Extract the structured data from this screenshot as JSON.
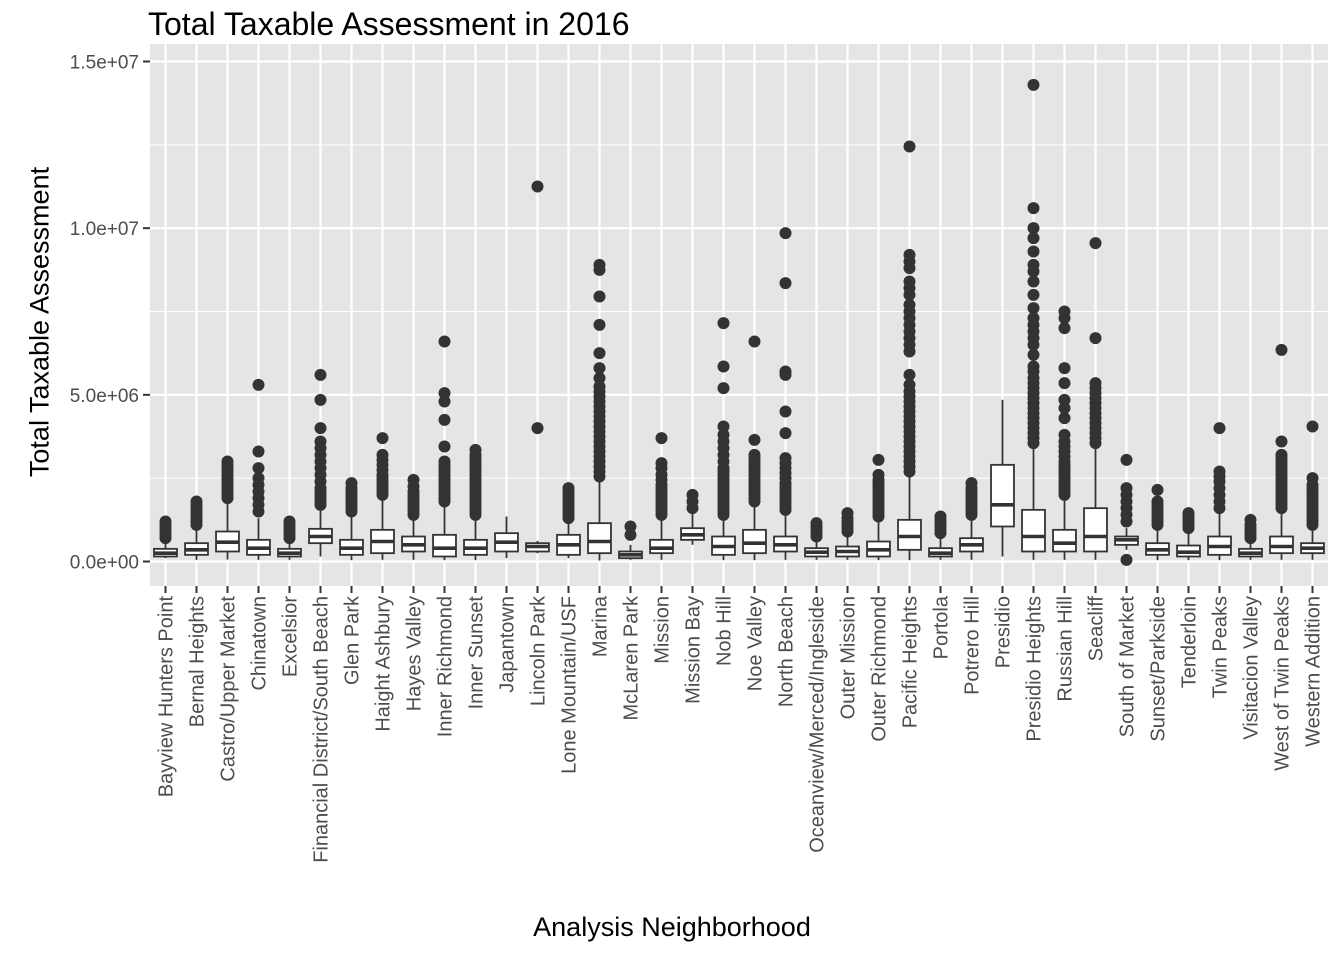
{
  "chart_data": {
    "type": "box",
    "title": "Total Taxable Assessment in 2016",
    "xlabel": "Analysis Neighborhood",
    "ylabel": "Total Taxable Assessment",
    "ylim": [
      -700000,
      15000000
    ],
    "yticks": [
      0,
      5000000,
      10000000,
      15000000
    ],
    "ytick_labels": [
      "0.0e+00",
      "5.0e+06",
      "1.0e+07",
      "1.5e+07"
    ],
    "grid": true,
    "theme": {
      "panel_bg": "#e5e5e5",
      "grid_color": "#ffffff",
      "box_fill": "#ffffff",
      "box_line": "#333333",
      "point_color": "#333333"
    },
    "categories": [
      "Bayview Hunters Point",
      "Bernal Heights",
      "Castro/Upper Market",
      "Chinatown",
      "Excelsior",
      "Financial District/South Beach",
      "Glen Park",
      "Haight Ashbury",
      "Hayes Valley",
      "Inner Richmond",
      "Inner Sunset",
      "Japantown",
      "Lincoln Park",
      "Lone Mountain/USF",
      "Marina",
      "McLaren Park",
      "Mission",
      "Mission Bay",
      "Nob Hill",
      "Noe Valley",
      "North Beach",
      "Oceanview/Merced/Ingleside",
      "Outer Mission",
      "Outer Richmond",
      "Pacific Heights",
      "Portola",
      "Potrero Hill",
      "Presidio",
      "Presidio Heights",
      "Russian Hill",
      "Seacliff",
      "South of Market",
      "Sunset/Parkside",
      "Tenderloin",
      "Twin Peaks",
      "Visitacion Valley",
      "West of Twin Peaks",
      "Western Addition"
    ],
    "boxes": [
      {
        "low": 100000,
        "q1": 150000,
        "median": 250000,
        "q3": 380000,
        "high": 650000,
        "outliers": [
          700000,
          800000,
          900000,
          1000000,
          1100000,
          1200000
        ]
      },
      {
        "low": 50000,
        "q1": 200000,
        "median": 350000,
        "q3": 550000,
        "high": 1000000,
        "outliers": [
          1100000,
          1200000,
          1300000,
          1400000,
          1500000,
          1600000,
          1700000,
          1800000
        ]
      },
      {
        "low": 60000,
        "q1": 300000,
        "median": 580000,
        "q3": 900000,
        "high": 1800000,
        "outliers": [
          1900000,
          2000000,
          2100000,
          2200000,
          2300000,
          2400000,
          2500000,
          2600000,
          2700000,
          2800000,
          2900000,
          3000000
        ]
      },
      {
        "low": 50000,
        "q1": 200000,
        "median": 400000,
        "q3": 650000,
        "high": 1300000,
        "outliers": [
          1500000,
          1700000,
          1900000,
          2100000,
          2300000,
          2500000,
          2800000,
          3300000,
          5300000
        ]
      },
      {
        "low": 50000,
        "q1": 150000,
        "median": 250000,
        "q3": 380000,
        "high": 650000,
        "outliers": [
          700000,
          800000,
          900000,
          1000000,
          1100000,
          1200000
        ]
      },
      {
        "low": 150000,
        "q1": 550000,
        "median": 750000,
        "q3": 980000,
        "high": 1600000,
        "outliers": [
          1700000,
          1800000,
          1900000,
          2000000,
          2100000,
          2200000,
          2400000,
          2600000,
          2800000,
          3000000,
          3200000,
          3400000,
          3600000,
          4000000,
          4850000,
          5600000
        ]
      },
      {
        "low": 40000,
        "q1": 200000,
        "median": 400000,
        "q3": 650000,
        "high": 1400000,
        "outliers": [
          1500000,
          1600000,
          1700000,
          1800000,
          1900000,
          2000000,
          2100000,
          2200000,
          2350000
        ]
      },
      {
        "low": 50000,
        "q1": 250000,
        "median": 600000,
        "q3": 950000,
        "high": 1900000,
        "outliers": [
          2000000,
          2100000,
          2200000,
          2300000,
          2400000,
          2500000,
          2600000,
          2750000,
          2900000,
          3050000,
          3200000,
          3700000
        ]
      },
      {
        "low": 50000,
        "q1": 300000,
        "median": 500000,
        "q3": 750000,
        "high": 1300000,
        "outliers": [
          1400000,
          1500000,
          1600000,
          1700000,
          1800000,
          1900000,
          2000000,
          2100000,
          2250000,
          2450000
        ]
      },
      {
        "low": 40000,
        "q1": 150000,
        "median": 400000,
        "q3": 800000,
        "high": 1700000,
        "outliers": [
          1800000,
          1900000,
          2000000,
          2100000,
          2200000,
          2300000,
          2400000,
          2500000,
          2600000,
          2700000,
          2800000,
          2900000,
          3000000,
          3450000,
          4250000,
          4800000,
          5050000,
          6600000
        ]
      },
      {
        "low": 40000,
        "q1": 200000,
        "median": 400000,
        "q3": 650000,
        "high": 1300000,
        "outliers": [
          1400000,
          1500000,
          1600000,
          1700000,
          1800000,
          1900000,
          2000000,
          2100000,
          2200000,
          2300000,
          2400000,
          2500000,
          2600000,
          2700000,
          2800000,
          2900000,
          3000000,
          3100000,
          3200000,
          3350000
        ]
      },
      {
        "low": 100000,
        "q1": 300000,
        "median": 580000,
        "q3": 850000,
        "high": 1350000,
        "outliers": []
      },
      {
        "low": 250000,
        "q1": 300000,
        "median": 450000,
        "q3": 550000,
        "high": 620000,
        "outliers": [
          4000000,
          11250000
        ]
      },
      {
        "low": 100000,
        "q1": 200000,
        "median": 500000,
        "q3": 800000,
        "high": 1250000,
        "outliers": [
          1300000,
          1400000,
          1500000,
          1600000,
          1700000,
          1800000,
          1900000,
          2000000,
          2100000,
          2200000
        ]
      },
      {
        "low": 30000,
        "q1": 250000,
        "median": 600000,
        "q3": 1150000,
        "high": 2400000,
        "outliers": [
          2550000,
          2700000,
          2850000,
          3000000,
          3150000,
          3300000,
          3450000,
          3600000,
          3750000,
          3900000,
          4050000,
          4200000,
          4350000,
          4500000,
          4650000,
          4800000,
          4950000,
          5100000,
          5250000,
          5500000,
          5800000,
          6250000,
          7100000,
          7950000,
          8750000,
          8900000
        ]
      },
      {
        "low": 50000,
        "q1": 100000,
        "median": 200000,
        "q3": 300000,
        "high": 500000,
        "outliers": [
          800000,
          1050000
        ]
      },
      {
        "low": 50000,
        "q1": 250000,
        "median": 400000,
        "q3": 650000,
        "high": 1300000,
        "outliers": [
          1400000,
          1500000,
          1600000,
          1700000,
          1800000,
          1900000,
          2000000,
          2100000,
          2200000,
          2300000,
          2450000,
          2600000,
          2800000,
          2950000,
          3700000
        ]
      },
      {
        "low": 500000,
        "q1": 650000,
        "median": 800000,
        "q3": 1000000,
        "high": 1450000,
        "outliers": [
          1600000,
          1800000,
          2000000
        ]
      },
      {
        "low": 40000,
        "q1": 200000,
        "median": 450000,
        "q3": 750000,
        "high": 1300000,
        "outliers": [
          1400000,
          1500000,
          1600000,
          1700000,
          1800000,
          1900000,
          2000000,
          2100000,
          2200000,
          2300000,
          2400000,
          2500000,
          2600000,
          2700000,
          2800000,
          3000000,
          3200000,
          3400000,
          3600000,
          3800000,
          4050000,
          5200000,
          5850000,
          7150000
        ]
      },
      {
        "low": 40000,
        "q1": 250000,
        "median": 550000,
        "q3": 950000,
        "high": 1700000,
        "outliers": [
          1800000,
          1900000,
          2000000,
          2100000,
          2200000,
          2300000,
          2400000,
          2500000,
          2600000,
          2700000,
          2800000,
          2900000,
          3000000,
          3100000,
          3200000,
          3650000,
          6600000
        ]
      },
      {
        "low": 50000,
        "q1": 300000,
        "median": 500000,
        "q3": 750000,
        "high": 1450000,
        "outliers": [
          1550000,
          1650000,
          1750000,
          1850000,
          1950000,
          2050000,
          2150000,
          2250000,
          2350000,
          2500000,
          2650000,
          2800000,
          2950000,
          3100000,
          3850000,
          4500000,
          5600000,
          5700000,
          8350000,
          9850000
        ]
      },
      {
        "low": 50000,
        "q1": 150000,
        "median": 280000,
        "q3": 400000,
        "high": 700000,
        "outliers": [
          750000,
          850000,
          950000,
          1050000,
          1150000
        ]
      },
      {
        "low": 50000,
        "q1": 150000,
        "median": 300000,
        "q3": 450000,
        "high": 800000,
        "outliers": [
          900000,
          1000000,
          1100000,
          1200000,
          1300000,
          1450000
        ]
      },
      {
        "low": 40000,
        "q1": 150000,
        "median": 350000,
        "q3": 600000,
        "high": 1250000,
        "outliers": [
          1350000,
          1450000,
          1550000,
          1650000,
          1750000,
          1850000,
          1950000,
          2050000,
          2150000,
          2250000,
          2350000,
          2450000,
          2600000,
          3050000
        ]
      },
      {
        "low": 40000,
        "q1": 350000,
        "median": 750000,
        "q3": 1250000,
        "high": 2550000,
        "outliers": [
          2700000,
          2850000,
          3000000,
          3150000,
          3300000,
          3450000,
          3600000,
          3750000,
          3900000,
          4050000,
          4200000,
          4350000,
          4500000,
          4650000,
          4800000,
          4950000,
          5100000,
          5300000,
          5600000,
          6300000,
          6500000,
          6700000,
          6900000,
          7100000,
          7300000,
          7500000,
          7700000,
          8000000,
          8200000,
          8400000,
          8800000,
          9000000,
          9200000,
          12450000
        ]
      },
      {
        "low": 50000,
        "q1": 150000,
        "median": 250000,
        "q3": 400000,
        "high": 750000,
        "outliers": [
          850000,
          950000,
          1050000,
          1150000,
          1250000,
          1350000
        ]
      },
      {
        "low": 50000,
        "q1": 300000,
        "median": 500000,
        "q3": 700000,
        "high": 1300000,
        "outliers": [
          1400000,
          1500000,
          1600000,
          1700000,
          1800000,
          1900000,
          2000000,
          2100000,
          2200000,
          2350000
        ]
      },
      {
        "low": 150000,
        "q1": 1050000,
        "median": 1700000,
        "q3": 2900000,
        "high": 4850000,
        "outliers": []
      },
      {
        "low": 50000,
        "q1": 300000,
        "median": 750000,
        "q3": 1550000,
        "high": 3400000,
        "outliers": [
          3550000,
          3700000,
          3850000,
          4000000,
          4150000,
          4300000,
          4450000,
          4600000,
          4750000,
          4900000,
          5050000,
          5200000,
          5350000,
          5500000,
          5700000,
          5850000,
          6200000,
          6500000,
          6700000,
          6900000,
          7100000,
          7300000,
          7600000,
          8000000,
          8400000,
          8700000,
          8900000,
          9300000,
          9700000,
          10000000,
          10600000,
          14300000
        ]
      },
      {
        "low": 50000,
        "q1": 300000,
        "median": 550000,
        "q3": 950000,
        "high": 1900000,
        "outliers": [
          2000000,
          2100000,
          2200000,
          2300000,
          2400000,
          2500000,
          2600000,
          2700000,
          2800000,
          2900000,
          3000000,
          3150000,
          3300000,
          3450000,
          3600000,
          3800000,
          4300000,
          4600000,
          4850000,
          5350000,
          5800000,
          7000000,
          7300000,
          7500000
        ]
      },
      {
        "low": 50000,
        "q1": 300000,
        "median": 750000,
        "q3": 1600000,
        "high": 3400000,
        "outliers": [
          3550000,
          3700000,
          3850000,
          4000000,
          4150000,
          4300000,
          4450000,
          4600000,
          4750000,
          4900000,
          5050000,
          5200000,
          5350000,
          6700000,
          9550000
        ]
      },
      {
        "low": 350000,
        "q1": 500000,
        "median": 650000,
        "q3": 750000,
        "high": 1000000,
        "outliers": [
          1200000,
          1400000,
          1600000,
          1800000,
          2000000,
          2200000,
          3050000,
          50000
        ]
      },
      {
        "low": 40000,
        "q1": 200000,
        "median": 350000,
        "q3": 550000,
        "high": 1000000,
        "outliers": [
          1100000,
          1200000,
          1300000,
          1400000,
          1500000,
          1600000,
          1700000,
          1800000,
          2150000
        ]
      },
      {
        "low": 40000,
        "q1": 150000,
        "median": 280000,
        "q3": 480000,
        "high": 900000,
        "outliers": [
          1000000,
          1100000,
          1200000,
          1300000,
          1400000,
          1450000
        ]
      },
      {
        "low": 40000,
        "q1": 200000,
        "median": 450000,
        "q3": 750000,
        "high": 1500000,
        "outliers": [
          1600000,
          1800000,
          2000000,
          2200000,
          2400000,
          2550000,
          2700000,
          4000000
        ]
      },
      {
        "low": 50000,
        "q1": 150000,
        "median": 250000,
        "q3": 380000,
        "high": 650000,
        "outliers": [
          700000,
          800000,
          900000,
          1000000,
          1100000,
          1250000
        ]
      },
      {
        "low": 50000,
        "q1": 250000,
        "median": 450000,
        "q3": 750000,
        "high": 1500000,
        "outliers": [
          1600000,
          1700000,
          1800000,
          1900000,
          2000000,
          2100000,
          2200000,
          2300000,
          2400000,
          2500000,
          2600000,
          2700000,
          2800000,
          2900000,
          3000000,
          3100000,
          3200000,
          3600000,
          6350000
        ]
      },
      {
        "low": 50000,
        "q1": 250000,
        "median": 400000,
        "q3": 550000,
        "high": 1000000,
        "outliers": [
          1100000,
          1200000,
          1300000,
          1400000,
          1500000,
          1600000,
          1700000,
          1800000,
          1900000,
          2000000,
          2100000,
          2200000,
          2300000,
          2500000,
          4050000
        ]
      }
    ]
  }
}
